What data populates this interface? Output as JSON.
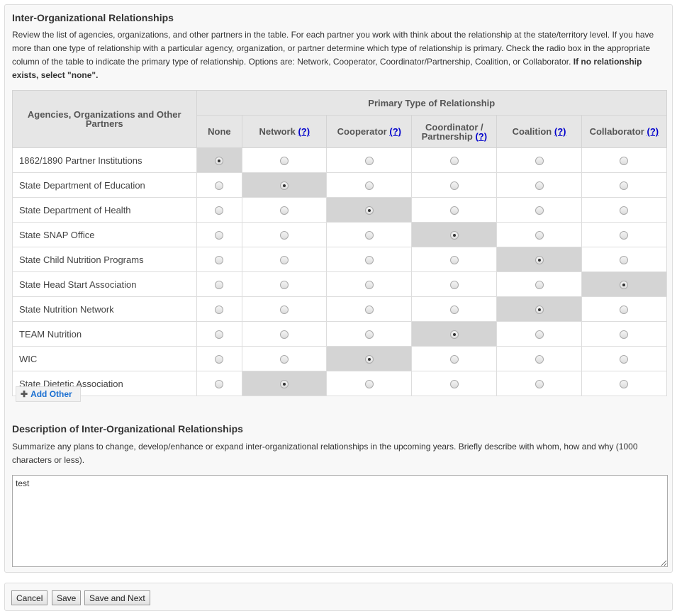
{
  "section1": {
    "title": "Inter-Organizational Relationships",
    "intro": "Review the list of agencies, organizations, and other partners in the table. For each partner you work with think about the relationship at the state/territory level. If you have more than one type of relationship with a particular agency, organization, or partner determine which type of relationship is primary. Check the radio box in the appropriate column of the table to indicate the primary type of relationship. Options are: Network, Cooperator, Coordinator/Partnership, Coalition, or Collaborator. ",
    "intro_bold": "If no relationship exists, select \"none\"."
  },
  "table": {
    "partners_header": "Agencies, Organizations and Other Partners",
    "group_header": "Primary Type of Relationship",
    "help_link": "(?)",
    "columns": [
      "None",
      "Network",
      "Cooperator",
      "Coordinator / Partnership",
      "Coalition",
      "Collaborator"
    ],
    "rows": [
      {
        "name": "1862/1890 Partner Institutions",
        "selected": "None"
      },
      {
        "name": "State Department of Education",
        "selected": "Network"
      },
      {
        "name": "State Department of Health",
        "selected": "Cooperator"
      },
      {
        "name": "State SNAP Office",
        "selected": "Coordinator / Partnership"
      },
      {
        "name": "State Child Nutrition Programs",
        "selected": "Coalition"
      },
      {
        "name": "State Head Start Association",
        "selected": "Collaborator"
      },
      {
        "name": "State Nutrition Network",
        "selected": "Coalition"
      },
      {
        "name": "TEAM Nutrition",
        "selected": "Coordinator / Partnership"
      },
      {
        "name": "WIC",
        "selected": "Cooperator"
      },
      {
        "name": "State Dietetic Association",
        "selected": "Network"
      }
    ]
  },
  "add_other_label": "Add Other",
  "section2": {
    "title": "Description of Inter-Organizational Relationships",
    "intro": "Summarize any plans to change, develop/enhance or expand inter-organizational relationships in the upcoming years. Briefly describe with whom, how and why (1000 characters or less).",
    "value": "test"
  },
  "footer": {
    "cancel": "Cancel",
    "save": "Save",
    "save_next": "Save and Next"
  }
}
